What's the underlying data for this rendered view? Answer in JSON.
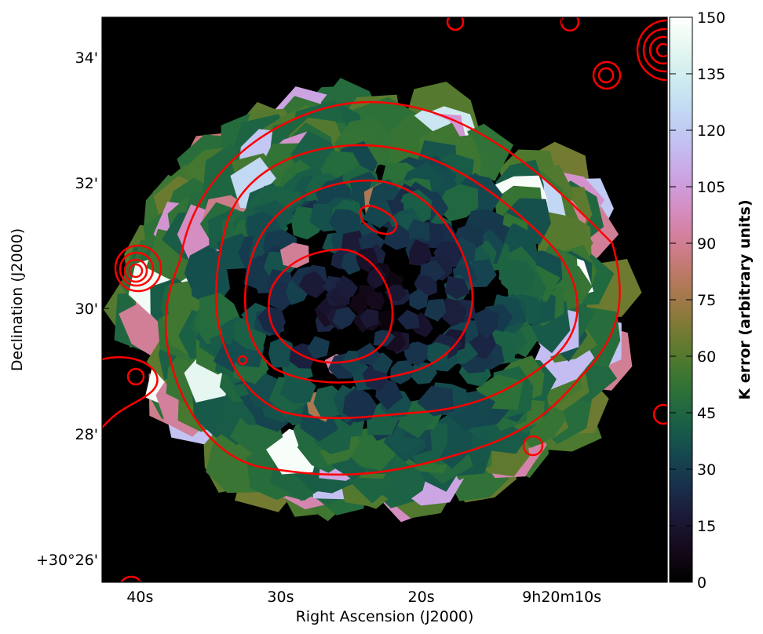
{
  "chart_data": {
    "type": "image",
    "xlabel": "Right Ascension (J2000)",
    "ylabel": "Declination (J2000)",
    "xlim": [
      42.7,
      2.5
    ],
    "ylim": [
      25.64,
      34.64
    ],
    "xticks": [
      {
        "value": 40,
        "label": "40s"
      },
      {
        "value": 30,
        "label": "30s"
      },
      {
        "value": 20,
        "label": "20s"
      },
      {
        "value": 10,
        "label": "9h20m10s"
      }
    ],
    "yticks": [
      {
        "value": 26,
        "label": "+30°26'"
      },
      {
        "value": 28,
        "label": "28'"
      },
      {
        "value": 30,
        "label": "30'"
      },
      {
        "value": 32,
        "label": "32'"
      },
      {
        "value": 34,
        "label": "34'"
      }
    ],
    "colorbar": {
      "label": "K error (arbitrary units)",
      "colormap": "cubehelix",
      "clim": [
        0,
        150
      ],
      "ticks": [
        0,
        15,
        30,
        45,
        60,
        75,
        90,
        105,
        120,
        135,
        150
      ]
    },
    "contour_color": "red"
  }
}
